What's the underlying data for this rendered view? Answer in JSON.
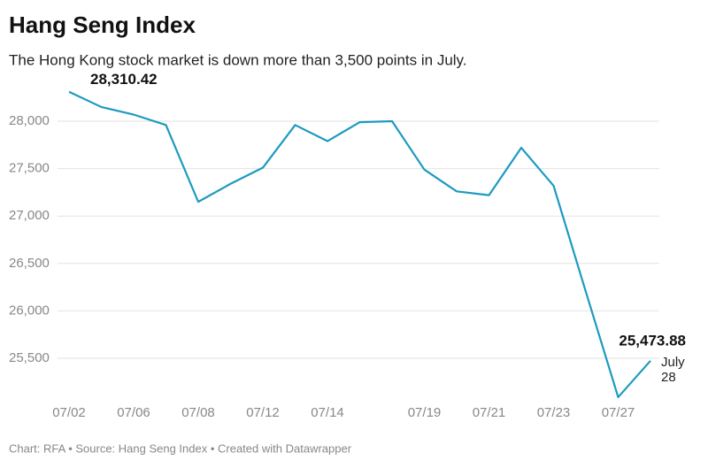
{
  "chart_data": {
    "type": "line",
    "title": "Hang Seng Index",
    "subtitle": "The Hong Kong stock market is down more than 3,500 points in July.",
    "source": "Chart: RFA • Source: Hang Seng Index • Created with Datawrapper",
    "categories": [
      "07/02",
      null,
      "07/06",
      null,
      "07/08",
      null,
      "07/12",
      null,
      "07/14",
      null,
      null,
      "07/19",
      null,
      "07/21",
      null,
      "07/23",
      null,
      "07/27",
      null
    ],
    "series": [
      {
        "name": "Hang Seng Index",
        "color": "#1d9ac0",
        "values": [
          28310.42,
          28150,
          28070,
          27960,
          27150,
          27340,
          27510,
          27960,
          27790,
          27990,
          28000,
          27490,
          27260,
          27220,
          27720,
          27320,
          26200,
          25090,
          25473.88
        ],
        "value_labels": [
          "28,310.42",
          null,
          null,
          null,
          null,
          null,
          null,
          null,
          null,
          null,
          null,
          null,
          null,
          null,
          null,
          null,
          null,
          null,
          "25,473.88"
        ]
      }
    ],
    "end_annotation": [
      "July",
      "28"
    ],
    "ylim": [
      25000,
      28350
    ],
    "yticks": [
      {
        "value": 25500,
        "label": "25,500"
      },
      {
        "value": 26000,
        "label": "26,000"
      },
      {
        "value": 26500,
        "label": "26,500"
      },
      {
        "value": 27000,
        "label": "27,000"
      },
      {
        "value": 27500,
        "label": "27,500"
      },
      {
        "value": 28000,
        "label": "28,000"
      }
    ],
    "grid": true
  }
}
